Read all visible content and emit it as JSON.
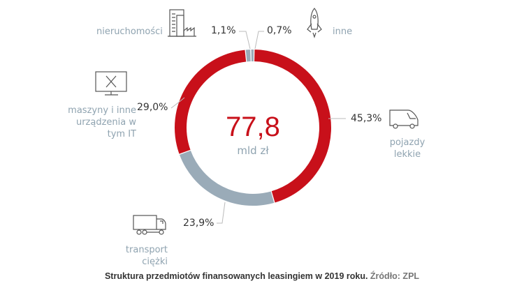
{
  "chart_data": {
    "type": "pie",
    "donut": true,
    "center_value": "77,8",
    "center_unit": "mld zł",
    "categories": [
      "inne",
      "pojazdy lekkie",
      "transport ciężki",
      "maszyny i inne urządzenia w tym IT",
      "nieruchomości"
    ],
    "values": [
      0.7,
      45.3,
      23.9,
      29.0,
      1.1
    ],
    "value_labels": [
      "0,7%",
      "45,3%",
      "23,9%",
      "29,0%",
      "1,1%"
    ],
    "colors": [
      "#9aabb8",
      "#c8101a",
      "#9aabb8",
      "#c8101a",
      "#9aabb8"
    ],
    "icons": [
      "rocket-icon",
      "van-icon",
      "truck-icon",
      "monitor-tools-icon",
      "building-factory-icon"
    ],
    "caption": "Struktura przedmiotów finansowanych leasingiem w 2019 roku.",
    "source": "Źródło: ZPL"
  }
}
